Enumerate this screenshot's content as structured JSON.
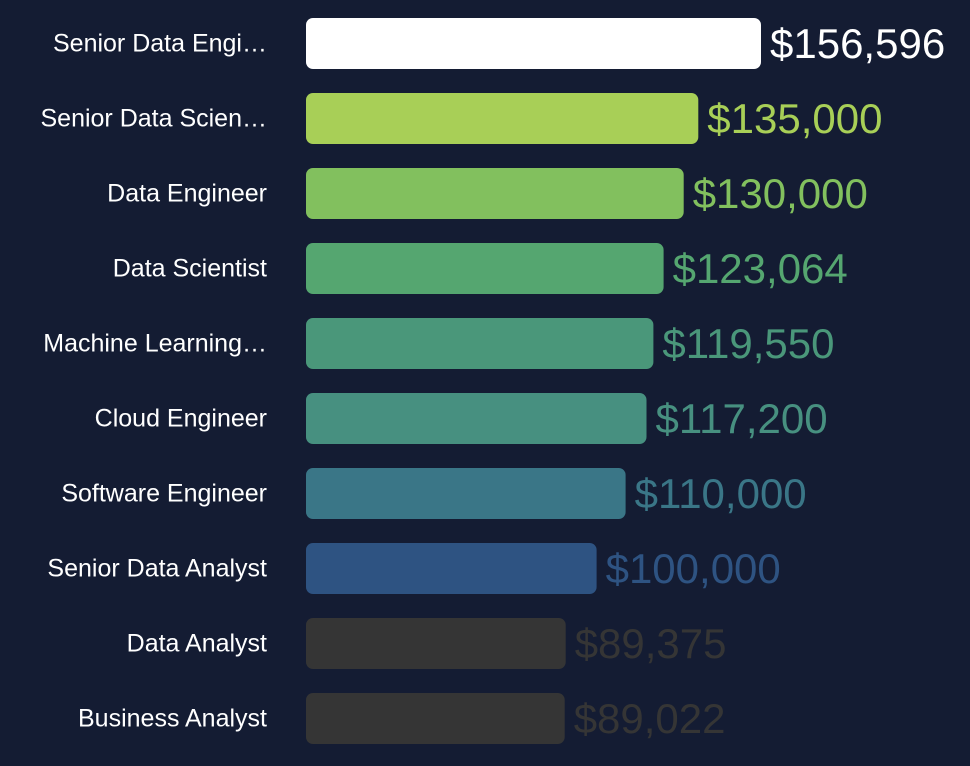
{
  "chart_data": {
    "type": "bar",
    "orientation": "horizontal",
    "title": "",
    "xlabel": "",
    "ylabel": "",
    "xlim": [
      0,
      156596
    ],
    "grid": false,
    "legend": "none",
    "background": "#141c33",
    "categories": [
      "Senior Data Engi…",
      "Senior Data Scien…",
      "Data Engineer",
      "Data Scientist",
      "Machine Learning…",
      "Cloud Engineer",
      "Software Engineer",
      "Senior Data Analyst",
      "Data Analyst",
      "Business Analyst"
    ],
    "values": [
      156596,
      135000,
      130000,
      123064,
      119550,
      117200,
      110000,
      100000,
      89375,
      89022
    ],
    "value_labels": [
      "$156,596",
      "$135,000",
      "$130,000",
      "$123,064",
      "$119,550",
      "$117,200",
      "$110,000",
      "$100,000",
      "$89,375",
      "$89,022"
    ],
    "colors": [
      "#ffffff",
      "#a8cf57",
      "#82c05e",
      "#55a670",
      "#4a977a",
      "#479080",
      "#3a7687",
      "#2e5382",
      "#353535",
      "#353535"
    ]
  }
}
